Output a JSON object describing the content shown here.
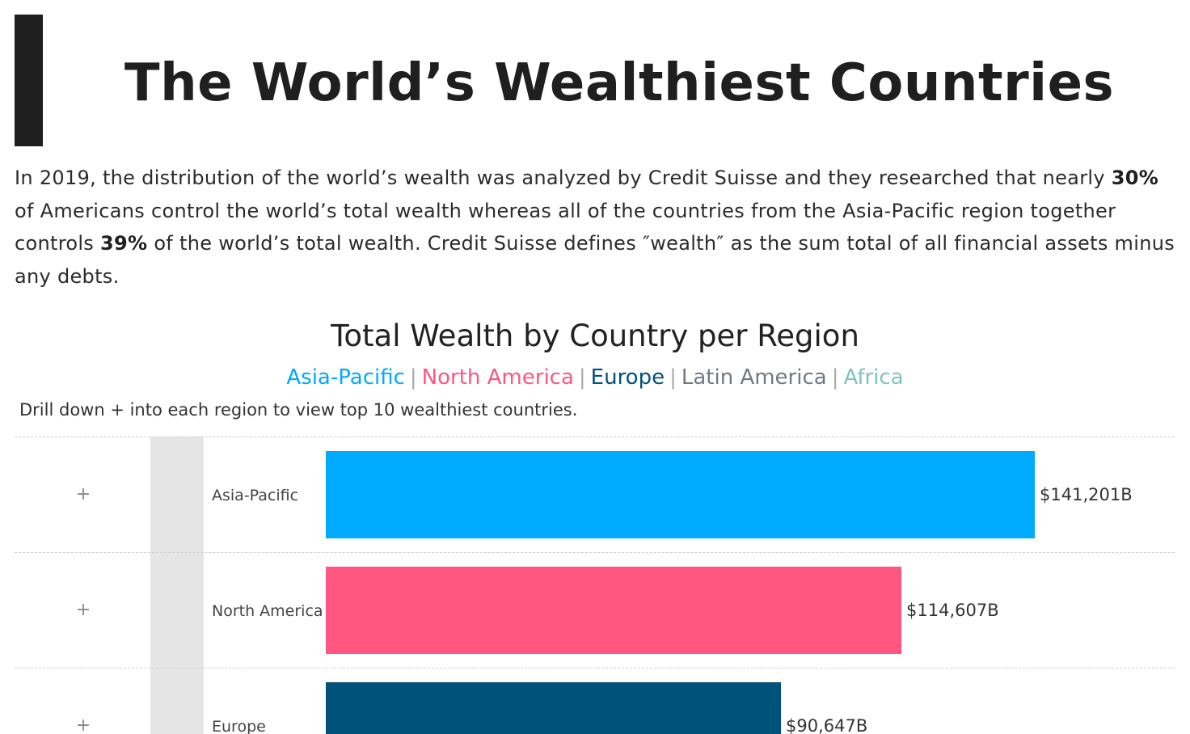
{
  "header": {
    "title": "The World’s Wealthiest Countries"
  },
  "intro": {
    "part1": "In 2019, the distribution of the world’s wealth was analyzed by Credit Suisse and they researched that nearly ",
    "highlight1": "30%",
    "part2": " of Americans control the world’s total wealth whereas all of the countries from the Asia-Pacific region together controls ",
    "highlight2": "39%",
    "part3": " of the world’s total wealth. Credit Suisse defines ″wealth″ as the sum total of all financial assets minus any debts."
  },
  "chart_data": {
    "type": "bar",
    "title": "Total Wealth by Country per Region",
    "legend": [
      {
        "name": "Asia-Pacific",
        "color": "#00aaff"
      },
      {
        "name": "North America",
        "color": "#ff577f"
      },
      {
        "name": "Europe",
        "color": "#00527a"
      },
      {
        "name": "Latin America",
        "color": "#6f7a85"
      },
      {
        "name": "Africa",
        "color": "#7fc4be"
      }
    ],
    "legend_separator": "|",
    "instruction": "Drill down + into each region to view top 10 wealthiest countries.",
    "expand_symbol": "+",
    "categories": [
      "Asia-Pacific",
      "North America",
      "Europe"
    ],
    "values": [
      141201,
      114607,
      90647
    ],
    "value_labels": [
      "$141,201B",
      "$114,607B",
      "$90,647B"
    ],
    "colors": [
      "#00aaff",
      "#ff577f",
      "#00527a"
    ],
    "unit": "$B",
    "xlim": [
      0,
      141201
    ]
  }
}
